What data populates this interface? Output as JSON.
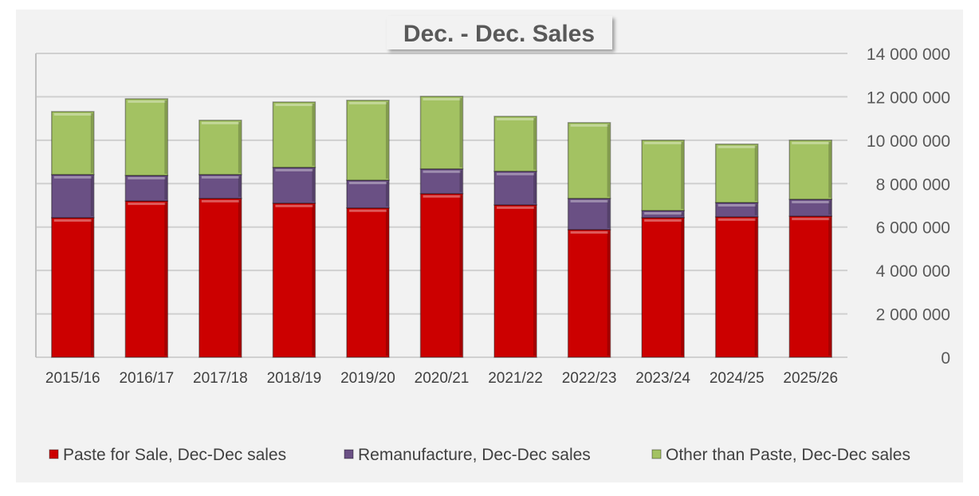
{
  "chart_data": {
    "type": "bar",
    "stacked": true,
    "title": "Dec. - Dec. Sales",
    "xlabel": "",
    "ylabel": "",
    "ylim": [
      0,
      14000000
    ],
    "yticks": [
      0,
      2000000,
      4000000,
      6000000,
      8000000,
      10000000,
      12000000,
      14000000
    ],
    "ytick_labels": [
      "0",
      "2 000 000",
      "4 000 000",
      "6 000 000",
      "8 000 000",
      "10 000 000",
      "12 000 000",
      "14 000 000"
    ],
    "y_axis_side": "right",
    "grid": true,
    "legend_position": "bottom",
    "categories": [
      "2015/16",
      "2016/17",
      "2017/18",
      "2018/19",
      "2019/20",
      "2020/21",
      "2021/22",
      "2022/23",
      "2023/24",
      "2024/25",
      "2025/26"
    ],
    "series": [
      {
        "name": "Paste for Sale, Dec-Dec sales",
        "color": "#cc0000",
        "values": [
          6430000,
          7200000,
          7320000,
          7100000,
          6880000,
          7540000,
          7020000,
          5880000,
          6430000,
          6470000,
          6500000
        ]
      },
      {
        "name": "Remanufacture, Dec-Dec sales",
        "color": "#6a5084",
        "values": [
          1990000,
          1180000,
          1100000,
          1650000,
          1280000,
          1140000,
          1550000,
          1440000,
          330000,
          660000,
          780000
        ]
      },
      {
        "name": "Other than Paste, Dec-Dec sales",
        "color": "#a3c262",
        "values": [
          2900000,
          3530000,
          2500000,
          3010000,
          3680000,
          3340000,
          2530000,
          3490000,
          3240000,
          2690000,
          2720000
        ]
      }
    ]
  }
}
